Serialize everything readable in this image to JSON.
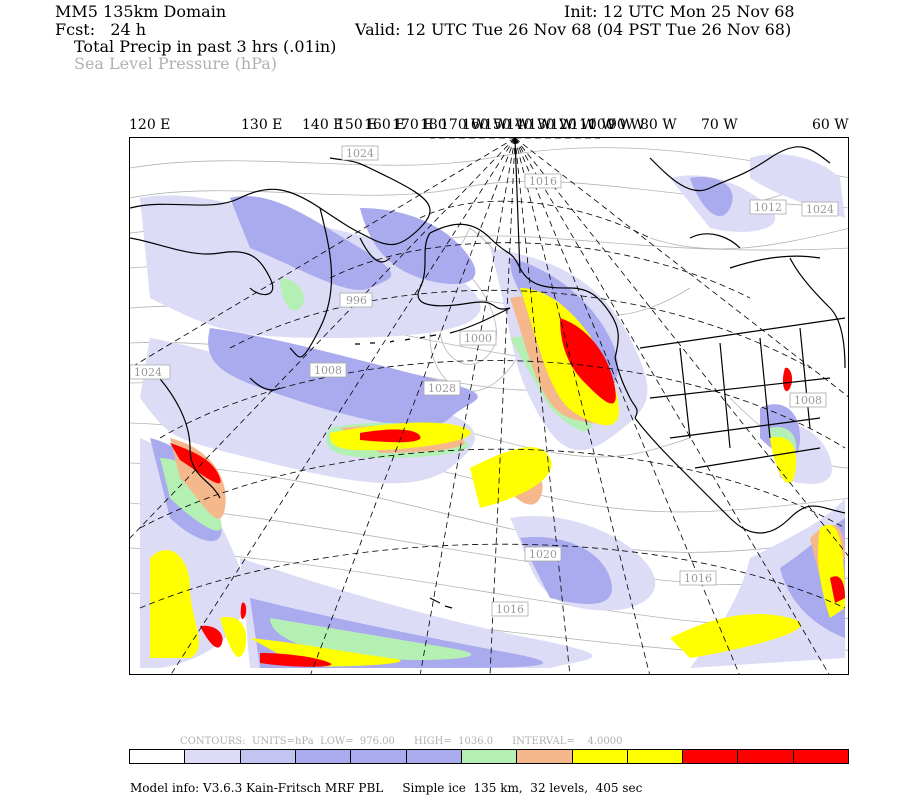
{
  "header": {
    "domain_title": "MM5 135km Domain",
    "forecast": "Fcst:   24 h",
    "init": "Init: 12 UTC Mon 25 Nov 68",
    "valid": "Valid: 12 UTC Tue 26 Nov 68 (04 PST Tue 26 Nov 68)",
    "field_primary": "Total Precip in past 3 hrs (.01in)",
    "field_secondary": "Sea Level Pressure (hPa)"
  },
  "longitude_labels": [
    {
      "text": "120 E"
    },
    {
      "text": "130 E"
    },
    {
      "text": "140 E"
    },
    {
      "text": "150 E"
    },
    {
      "text": "160 E"
    },
    {
      "text": "170 E"
    },
    {
      "text": "180"
    },
    {
      "text": "170 W"
    },
    {
      "text": "160 W"
    },
    {
      "text": "150 W"
    },
    {
      "text": "140 W"
    },
    {
      "text": "130 W"
    },
    {
      "text": "120 W"
    },
    {
      "text": "110 W"
    },
    {
      "text": "100 W"
    },
    {
      "text": "90 W"
    },
    {
      "text": "80 W"
    },
    {
      "text": "70 W"
    },
    {
      "text": "60 W"
    }
  ],
  "pressure_labels": [
    "1024",
    "1016",
    "1012",
    "996",
    "1008",
    "1000",
    "1028",
    "1024",
    "1016",
    "1020",
    "1024",
    "1016",
    "1008"
  ],
  "contours": {
    "text": "CONTOURS:  UNITS=hPa  LOW=  976.00      HIGH=  1036.0      INTERVAL=    4.0000"
  },
  "colorbar": {
    "colors": [
      "#ffffff",
      "#dcdcf6",
      "#c4c4f2",
      "#aaaaee",
      "#aaaaee",
      "#aaaaee",
      "#b4f0b4",
      "#f5b88c",
      "#ffff00",
      "#ffff00",
      "#ff0000",
      "#ff0000",
      "#ff0000"
    ]
  },
  "model_info": "Model info: V3.6.3 Kain-Fritsch MRF PBL     Simple ice  135 km,  32 levels,  405 sec"
}
